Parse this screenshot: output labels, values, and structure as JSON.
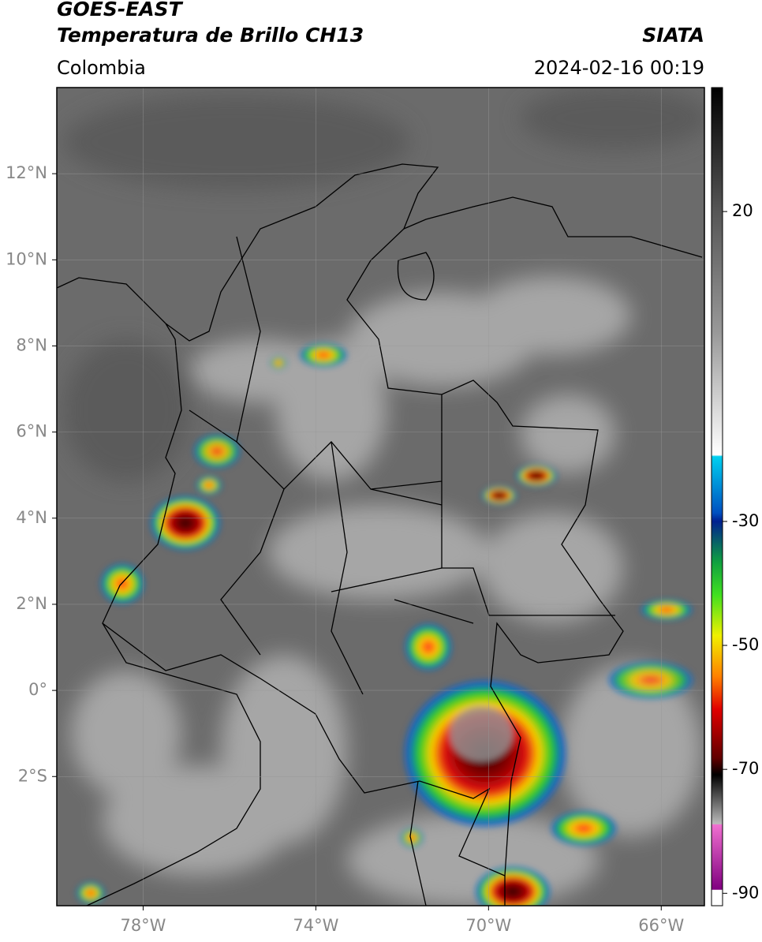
{
  "header": {
    "title": "GOES-EAST",
    "subtitle": "Temperatura de Brillo CH13",
    "source": "SIATA",
    "region": "Colombia",
    "datetime": "2024-02-16 00:19"
  },
  "map": {
    "xlim": [
      -80,
      -65
    ],
    "ylim": [
      -5,
      14
    ],
    "xticks": [
      {
        "value": -78,
        "label": "78°W"
      },
      {
        "value": -74,
        "label": "74°W"
      },
      {
        "value": -70,
        "label": "70°W"
      },
      {
        "value": -66,
        "label": "66°W"
      }
    ],
    "yticks": [
      {
        "value": 12,
        "label": "12°N"
      },
      {
        "value": 10,
        "label": "10°N"
      },
      {
        "value": 8,
        "label": "8°N"
      },
      {
        "value": 6,
        "label": "6°N"
      },
      {
        "value": 4,
        "label": "4°N"
      },
      {
        "value": 2,
        "label": "2°N"
      },
      {
        "value": 0,
        "label": "0°"
      },
      {
        "value": -2,
        "label": "2°S"
      }
    ]
  },
  "colorbar": {
    "lim": [
      40,
      -92
    ],
    "ticks": [
      20,
      -30,
      -50,
      -70,
      -90
    ]
  }
}
